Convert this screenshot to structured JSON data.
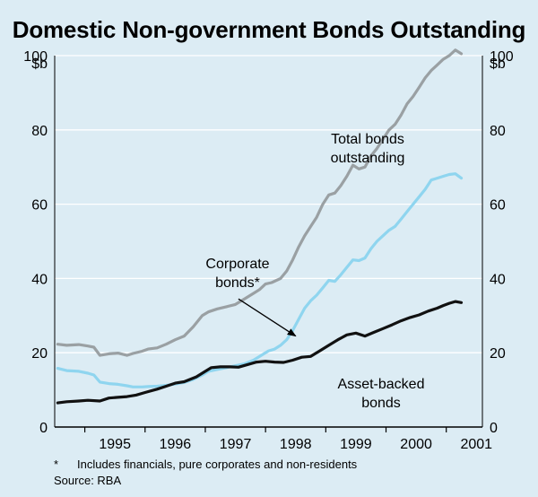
{
  "chart_data": {
    "type": "line",
    "title": "Domestic Non-government Bonds Outstanding",
    "ylabel_left": "$b",
    "ylabel_right": "$b",
    "ylim": [
      0,
      100
    ],
    "yticks": [
      0,
      20,
      40,
      60,
      80,
      100
    ],
    "xlim": [
      1994.5,
      2001.6
    ],
    "xticks": [
      "1995",
      "1996",
      "1997",
      "1998",
      "1999",
      "2000",
      "2001"
    ],
    "grid": true,
    "series": [
      {
        "name": "Total bonds outstanding",
        "label_lines": [
          "Total bonds",
          "outstanding"
        ],
        "color": "#9aa0a3",
        "points": [
          [
            1994.55,
            22.3
          ],
          [
            1994.7,
            22
          ],
          [
            1994.9,
            22.2
          ],
          [
            1995.05,
            21.8
          ],
          [
            1995.15,
            21.5
          ],
          [
            1995.25,
            19.3
          ],
          [
            1995.4,
            19.7
          ],
          [
            1995.55,
            19.9
          ],
          [
            1995.7,
            19.3
          ],
          [
            1995.8,
            19.8
          ],
          [
            1995.95,
            20.4
          ],
          [
            1996.05,
            21
          ],
          [
            1996.2,
            21.3
          ],
          [
            1996.35,
            22.3
          ],
          [
            1996.5,
            23.5
          ],
          [
            1996.65,
            24.5
          ],
          [
            1996.8,
            27
          ],
          [
            1996.95,
            30
          ],
          [
            1997.05,
            31
          ],
          [
            1997.2,
            31.8
          ],
          [
            1997.35,
            32.4
          ],
          [
            1997.5,
            33
          ],
          [
            1997.65,
            34.5
          ],
          [
            1997.8,
            36
          ],
          [
            1997.9,
            37
          ],
          [
            1998.0,
            38.5
          ],
          [
            1998.1,
            38.9
          ],
          [
            1998.25,
            40
          ],
          [
            1998.35,
            42
          ],
          [
            1998.45,
            45
          ],
          [
            1998.55,
            48.5
          ],
          [
            1998.65,
            51.5
          ],
          [
            1998.75,
            54
          ],
          [
            1998.85,
            56.5
          ],
          [
            1998.95,
            60
          ],
          [
            1999.05,
            62.5
          ],
          [
            1999.15,
            63
          ],
          [
            1999.25,
            65
          ],
          [
            1999.35,
            67.5
          ],
          [
            1999.45,
            70.5
          ],
          [
            1999.55,
            69.5
          ],
          [
            1999.65,
            70
          ],
          [
            1999.75,
            73
          ],
          [
            1999.85,
            75
          ],
          [
            1999.95,
            77.5
          ],
          [
            2000.05,
            80
          ],
          [
            2000.15,
            81.5
          ],
          [
            2000.25,
            84
          ],
          [
            2000.35,
            87
          ],
          [
            2000.45,
            89
          ],
          [
            2000.55,
            91.5
          ],
          [
            2000.65,
            94
          ],
          [
            2000.75,
            96
          ],
          [
            2000.85,
            97.5
          ],
          [
            2000.95,
            99
          ],
          [
            2001.05,
            100
          ],
          [
            2001.15,
            101.5
          ],
          [
            2001.25,
            100.5
          ]
        ]
      },
      {
        "name": "Corporate bonds*",
        "label_lines": [
          "Corporate",
          "bonds*"
        ],
        "color": "#8fd5ef",
        "points": [
          [
            1994.55,
            15.8
          ],
          [
            1994.7,
            15.2
          ],
          [
            1994.9,
            15
          ],
          [
            1995.05,
            14.5
          ],
          [
            1995.15,
            14
          ],
          [
            1995.25,
            12.1
          ],
          [
            1995.4,
            11.7
          ],
          [
            1995.55,
            11.5
          ],
          [
            1995.7,
            11.1
          ],
          [
            1995.8,
            10.8
          ],
          [
            1995.95,
            10.8
          ],
          [
            1996.05,
            10.9
          ],
          [
            1996.2,
            11
          ],
          [
            1996.35,
            11.2
          ],
          [
            1996.5,
            11.6
          ],
          [
            1996.65,
            12
          ],
          [
            1996.8,
            12.8
          ],
          [
            1996.95,
            14
          ],
          [
            1997.05,
            15
          ],
          [
            1997.2,
            15.5
          ],
          [
            1997.35,
            16
          ],
          [
            1997.5,
            16.5
          ],
          [
            1997.65,
            17
          ],
          [
            1997.8,
            18
          ],
          [
            1997.95,
            19.5
          ],
          [
            1998.05,
            20.5
          ],
          [
            1998.15,
            21
          ],
          [
            1998.25,
            22
          ],
          [
            1998.35,
            23.5
          ],
          [
            1998.45,
            26
          ],
          [
            1998.55,
            29
          ],
          [
            1998.65,
            32
          ],
          [
            1998.75,
            34
          ],
          [
            1998.85,
            35.5
          ],
          [
            1998.95,
            37.5
          ],
          [
            1999.05,
            39.5
          ],
          [
            1999.15,
            39.2
          ],
          [
            1999.25,
            41
          ],
          [
            1999.35,
            43
          ],
          [
            1999.45,
            45
          ],
          [
            1999.55,
            44.8
          ],
          [
            1999.65,
            45.5
          ],
          [
            1999.75,
            48
          ],
          [
            1999.85,
            50
          ],
          [
            1999.95,
            51.5
          ],
          [
            2000.05,
            53
          ],
          [
            2000.15,
            54
          ],
          [
            2000.25,
            56
          ],
          [
            2000.35,
            58
          ],
          [
            2000.45,
            60
          ],
          [
            2000.55,
            62
          ],
          [
            2000.65,
            64
          ],
          [
            2000.75,
            66.5
          ],
          [
            2000.85,
            67
          ],
          [
            2000.95,
            67.5
          ],
          [
            2001.05,
            68
          ],
          [
            2001.15,
            68.2
          ],
          [
            2001.25,
            67
          ]
        ]
      },
      {
        "name": "Asset-backed bonds",
        "label_lines": [
          "Asset-backed",
          "bonds"
        ],
        "color": "#111111",
        "points": [
          [
            1994.55,
            6.5
          ],
          [
            1994.7,
            6.8
          ],
          [
            1994.9,
            7
          ],
          [
            1995.05,
            7.2
          ],
          [
            1995.25,
            7
          ],
          [
            1995.4,
            7.8
          ],
          [
            1995.55,
            8
          ],
          [
            1995.7,
            8.2
          ],
          [
            1995.85,
            8.6
          ],
          [
            1996.0,
            9.3
          ],
          [
            1996.2,
            10.2
          ],
          [
            1996.35,
            11
          ],
          [
            1996.5,
            11.8
          ],
          [
            1996.65,
            12.2
          ],
          [
            1996.85,
            13.5
          ],
          [
            1997.0,
            15
          ],
          [
            1997.1,
            16
          ],
          [
            1997.25,
            16.2
          ],
          [
            1997.4,
            16.2
          ],
          [
            1997.55,
            16.1
          ],
          [
            1997.7,
            16.8
          ],
          [
            1997.85,
            17.5
          ],
          [
            1998.0,
            17.7
          ],
          [
            1998.15,
            17.5
          ],
          [
            1998.3,
            17.4
          ],
          [
            1998.45,
            18
          ],
          [
            1998.6,
            18.8
          ],
          [
            1998.75,
            19
          ],
          [
            1998.9,
            20.5
          ],
          [
            1999.05,
            22
          ],
          [
            1999.2,
            23.5
          ],
          [
            1999.35,
            24.8
          ],
          [
            1999.5,
            25.3
          ],
          [
            1999.65,
            24.5
          ],
          [
            1999.8,
            25.5
          ],
          [
            1999.95,
            26.5
          ],
          [
            2000.1,
            27.5
          ],
          [
            2000.25,
            28.6
          ],
          [
            2000.4,
            29.5
          ],
          [
            2000.55,
            30.2
          ],
          [
            2000.7,
            31.2
          ],
          [
            2000.85,
            32
          ],
          [
            2000.95,
            32.7
          ],
          [
            2001.05,
            33.3
          ],
          [
            2001.15,
            33.8
          ],
          [
            2001.25,
            33.5
          ]
        ]
      }
    ],
    "annotation_arrow": {
      "from": [
        1997.55,
        34.5
      ],
      "to": [
        1998.5,
        24.5
      ]
    }
  },
  "footnote": {
    "mark": "*",
    "text": "Includes financials, pure corporates and non-residents"
  },
  "source": "Source: RBA"
}
